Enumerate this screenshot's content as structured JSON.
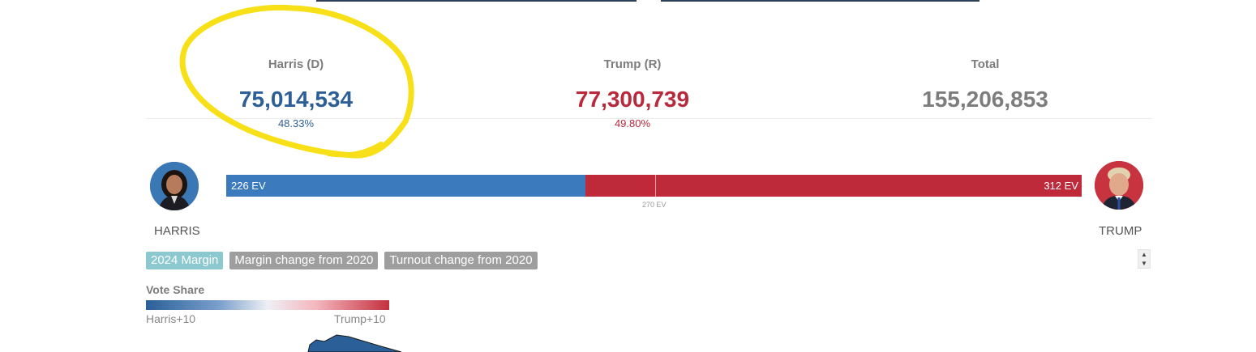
{
  "totals": {
    "harris": {
      "label": "Harris (D)",
      "votes": "75,014,534",
      "pct": "48.33%"
    },
    "trump": {
      "label": "Trump (R)",
      "votes": "77,300,739",
      "pct": "49.80%"
    },
    "total": {
      "label": "Total",
      "votes": "155,206,853"
    }
  },
  "electoral": {
    "harris_label": "226 EV",
    "trump_label": "312 EV",
    "threshold_label": "270 EV",
    "harris_ev": 226,
    "trump_ev": 312,
    "threshold": 270,
    "total_ev": 538
  },
  "candidates": {
    "harris_name": "HARRIS",
    "trump_name": "TRUMP"
  },
  "tabs": [
    "2024 Margin",
    "Margin change from 2020",
    "Turnout change from 2020"
  ],
  "legend": {
    "title": "Vote Share",
    "left_label": "Harris+10",
    "right_label": "Trump+10"
  },
  "colors": {
    "harris": "#3a7abd",
    "trump": "#bf2a3b",
    "highlight": "#f7e018",
    "active_tab": "#8bc8d0",
    "inactive_tab": "#9e9e9e"
  }
}
